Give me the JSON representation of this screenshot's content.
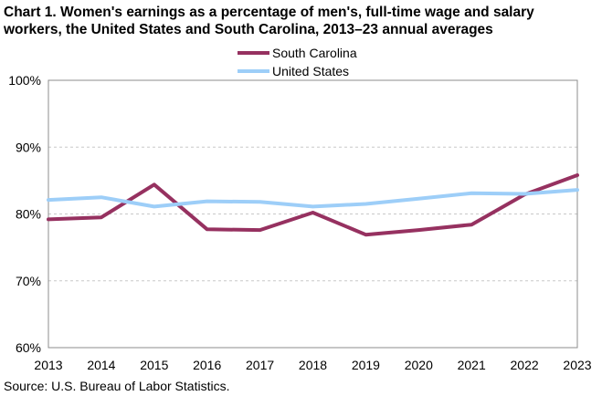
{
  "chart": {
    "title_line1": "Chart 1. Women's earnings as a percentage of men's, full-time wage and salary",
    "title_line2": "workers, the United States and South Carolina, 2013–23 annual averages",
    "source": "Source: U.S. Bureau of Labor Statistics."
  },
  "chart_data": {
    "type": "line",
    "title": "Chart 1. Women's earnings as a percentage of men's, full-time wage and salary workers, the United States and South Carolina, 2013–23 annual averages",
    "x": [
      "2013",
      "2014",
      "2015",
      "2016",
      "2017",
      "2018",
      "2019",
      "2020",
      "2021",
      "2022",
      "2023"
    ],
    "ylim": [
      60,
      100
    ],
    "yticks": [
      "60%",
      "70%",
      "80%",
      "90%",
      "100%"
    ],
    "grid": "horizontal dashed",
    "legend": "top-center",
    "series": [
      {
        "name": "South Carolina",
        "color": "#963160",
        "values": [
          79.2,
          79.5,
          84.4,
          77.7,
          77.6,
          80.2,
          76.9,
          77.6,
          78.4,
          82.9,
          85.8
        ]
      },
      {
        "name": "United States",
        "color": "#9DCEF8",
        "values": [
          82.1,
          82.5,
          81.1,
          81.9,
          81.8,
          81.1,
          81.5,
          82.3,
          83.1,
          83.0,
          83.6
        ]
      }
    ]
  }
}
